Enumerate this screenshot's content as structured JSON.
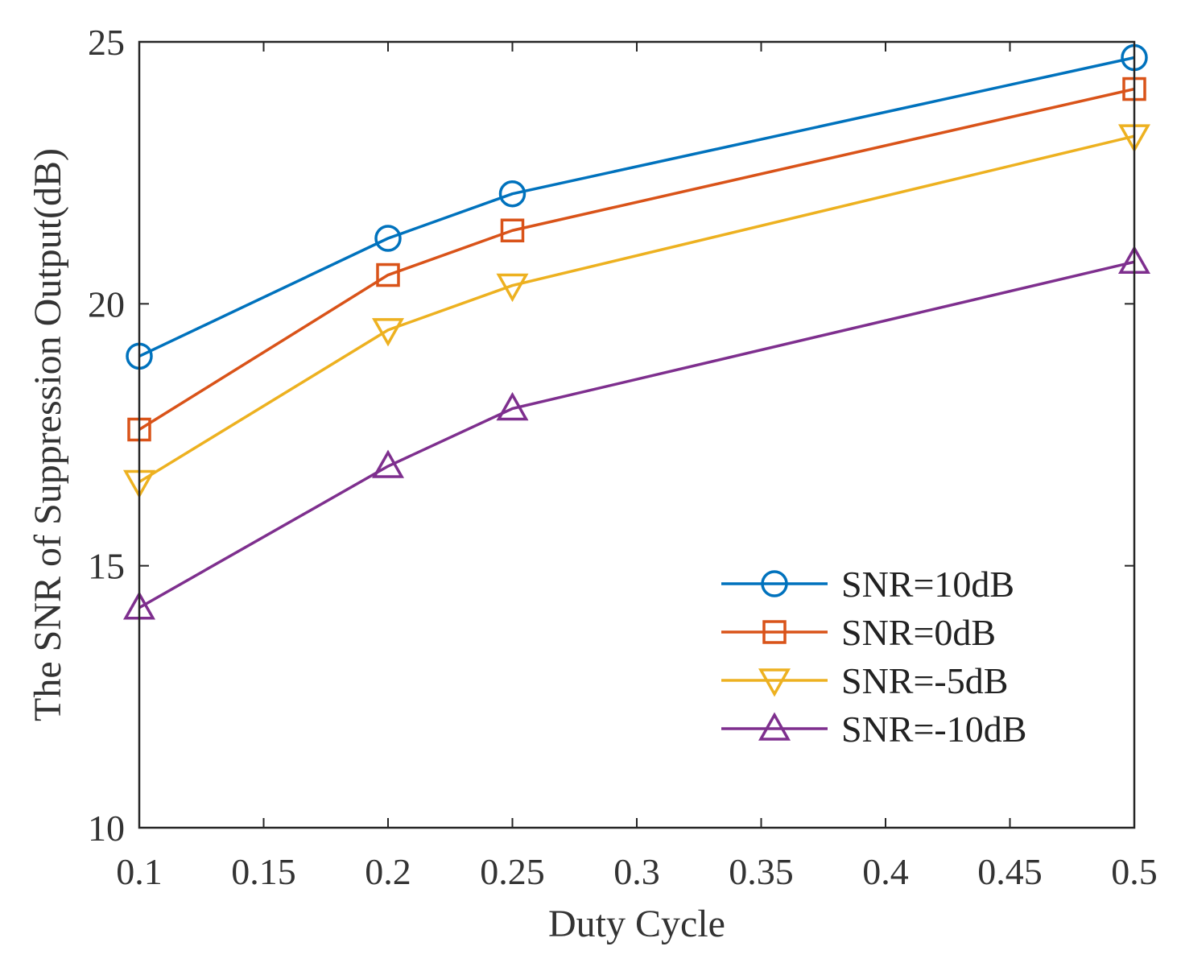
{
  "chart_data": {
    "type": "line",
    "title": "",
    "xlabel": "Duty Cycle",
    "ylabel": "The SNR of Suppression Output(dB)",
    "xlim": [
      0.1,
      0.5
    ],
    "ylim": [
      10,
      25
    ],
    "xticks": [
      0.1,
      0.15,
      0.2,
      0.25,
      0.3,
      0.35,
      0.4,
      0.45,
      0.5
    ],
    "xtick_labels": [
      "0.1",
      "0.15",
      "0.2",
      "0.25",
      "0.3",
      "0.35",
      "0.4",
      "0.45",
      "0.5"
    ],
    "yticks": [
      10,
      15,
      20,
      25
    ],
    "ytick_labels": [
      "10",
      "15",
      "20",
      "25"
    ],
    "grid": false,
    "legend_position": "bottom-right",
    "x": [
      0.1,
      0.2,
      0.25,
      0.5
    ],
    "series": [
      {
        "name": "SNR=10dB",
        "marker": "circle",
        "color": "#0072BD",
        "values": [
          19.0,
          21.25,
          22.1,
          24.7
        ]
      },
      {
        "name": "SNR=0dB",
        "marker": "square",
        "color": "#D95319",
        "values": [
          17.6,
          20.55,
          21.4,
          24.1
        ]
      },
      {
        "name": "SNR=-5dB",
        "marker": "triangle-down",
        "color": "#EDB120",
        "values": [
          16.6,
          19.5,
          20.35,
          23.2
        ]
      },
      {
        "name": "SNR=-10dB",
        "marker": "triangle-up",
        "color": "#7E2F8E",
        "values": [
          14.2,
          16.9,
          18.0,
          20.8
        ]
      }
    ]
  }
}
